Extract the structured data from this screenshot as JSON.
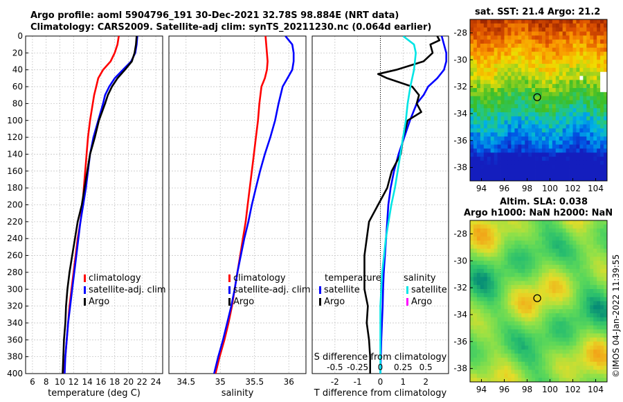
{
  "header": {
    "line1": "Argo profile: aoml 5904796_191 30-Dec-2021 32.78S 98.884E (NRT data)",
    "line2": "Climatology: CARS2009. Satellite-adj clim: synTS_20211230.nc (0.064d earlier)"
  },
  "right_titles": {
    "sst": "sat. SST: 21.4 Argo: 21.2",
    "sla_line1": "Altim. SLA: 0.038",
    "sla_line2": "Argo h1000: NaN h2000: NaN"
  },
  "watermark": "©IMOS 04-Jan-2022 11:39:55",
  "colors": {
    "climatology": "#ff0000",
    "satellite": "#0000ff",
    "argo": "#000000",
    "sat_salinity": "#00e5e5",
    "argo_salinity": "#ff00ff"
  },
  "chart_data": [
    {
      "type": "line",
      "name": "temperature-profile",
      "xlabel": "temperature (deg C)",
      "ylabel": "",
      "xlim": [
        5,
        25
      ],
      "ylim": [
        400,
        0
      ],
      "xticks": [
        6,
        8,
        10,
        12,
        14,
        16,
        18,
        20,
        22,
        24
      ],
      "yticks": [
        0,
        20,
        40,
        60,
        80,
        100,
        120,
        140,
        160,
        180,
        200,
        220,
        240,
        260,
        280,
        300,
        320,
        340,
        360,
        380,
        400
      ],
      "grid": true,
      "legend": [
        "climatology",
        "satellite-adj. clim",
        "Argo"
      ],
      "series": [
        {
          "name": "climatology",
          "color": "#ff0000",
          "depth": [
            0,
            10,
            20,
            30,
            40,
            50,
            60,
            70,
            80,
            100,
            120,
            140,
            160,
            180,
            200,
            220,
            240,
            260,
            280,
            300,
            320,
            340,
            360,
            380,
            400
          ],
          "values": [
            18.6,
            18.4,
            18.0,
            17.4,
            16.3,
            15.6,
            15.3,
            15.0,
            14.8,
            14.4,
            14.1,
            13.9,
            13.7,
            13.5,
            13.3,
            13.0,
            12.6,
            12.3,
            12.0,
            11.7,
            11.4,
            11.2,
            11.0,
            10.8,
            10.6
          ]
        },
        {
          "name": "satellite-adj. clim",
          "color": "#0000ff",
          "depth": [
            0,
            10,
            20,
            30,
            40,
            50,
            60,
            70,
            80,
            100,
            120,
            140,
            160,
            180,
            200,
            220,
            240,
            260,
            280,
            300,
            320,
            340,
            360,
            380,
            400
          ],
          "values": [
            21.3,
            21.2,
            21.0,
            20.4,
            19.2,
            18.0,
            17.2,
            16.6,
            16.3,
            15.6,
            14.9,
            14.4,
            14.1,
            13.8,
            13.4,
            13.0,
            12.7,
            12.4,
            12.1,
            11.8,
            11.5,
            11.2,
            11.0,
            10.8,
            10.7
          ]
        },
        {
          "name": "Argo",
          "color": "#000000",
          "depth": [
            0,
            10,
            20,
            30,
            40,
            50,
            60,
            70,
            80,
            100,
            120,
            140,
            160,
            180,
            200,
            220,
            240,
            260,
            280,
            300,
            320,
            340,
            360,
            380,
            400
          ],
          "values": [
            21.2,
            21.1,
            20.9,
            20.5,
            19.5,
            18.4,
            17.6,
            17.0,
            16.6,
            15.7,
            15.1,
            14.4,
            14.0,
            13.6,
            13.2,
            12.6,
            12.2,
            11.8,
            11.4,
            11.1,
            10.9,
            10.8,
            10.6,
            10.5,
            10.4
          ]
        }
      ]
    },
    {
      "type": "line",
      "name": "salinity-profile",
      "xlabel": "salinity",
      "xlim": [
        34.25,
        36.25
      ],
      "ylim": [
        400,
        0
      ],
      "xticks": [
        34.5,
        35,
        35.5,
        36
      ],
      "xtick_labels": [
        "34.5",
        "35",
        "35.5",
        "36"
      ],
      "grid": true,
      "legend": [
        "climatology",
        "satellite-adj. clim",
        "Argo"
      ],
      "series": [
        {
          "name": "climatology",
          "color": "#ff0000",
          "depth": [
            0,
            10,
            20,
            30,
            40,
            50,
            60,
            80,
            100,
            120,
            140,
            160,
            180,
            200,
            220,
            240,
            260,
            280,
            300,
            320,
            340,
            360,
            380,
            400
          ],
          "values": [
            35.66,
            35.67,
            35.68,
            35.69,
            35.68,
            35.65,
            35.6,
            35.57,
            35.55,
            35.52,
            35.49,
            35.46,
            35.43,
            35.4,
            35.37,
            35.33,
            35.29,
            35.25,
            35.21,
            35.17,
            35.12,
            35.06,
            34.99,
            34.93
          ]
        },
        {
          "name": "satellite-adj. clim",
          "color": "#0000ff",
          "depth": [
            0,
            10,
            20,
            30,
            40,
            50,
            60,
            80,
            100,
            120,
            140,
            160,
            180,
            200,
            220,
            240,
            260,
            280,
            300,
            320,
            340,
            360,
            380,
            400
          ],
          "values": [
            35.95,
            36.05,
            36.07,
            36.07,
            36.05,
            35.98,
            35.91,
            35.85,
            35.8,
            35.73,
            35.65,
            35.58,
            35.52,
            35.46,
            35.41,
            35.35,
            35.3,
            35.25,
            35.21,
            35.16,
            35.1,
            35.04,
            34.97,
            34.91
          ]
        },
        {
          "name": "Argo",
          "color": "#000000",
          "depth": [],
          "values": []
        }
      ]
    },
    {
      "type": "line",
      "name": "difference-profile",
      "xlabel": "T difference from climatology",
      "top_axis_label": "S difference from climatology",
      "xlim": [
        -3,
        3
      ],
      "ylim": [
        400,
        0
      ],
      "xticks": [
        -2,
        -1,
        0,
        1,
        2
      ],
      "xtick_labels": [
        "-2",
        "-1",
        "0",
        "1",
        "2"
      ],
      "top_ticks": [
        -0.5,
        -0.25,
        0,
        0.25,
        0.5
      ],
      "top_tick_labels": [
        "-0.5",
        "-0.25",
        "0",
        "0.25",
        "0.5"
      ],
      "top_xlim": [
        -0.75,
        0.75
      ],
      "grid": true,
      "zero_line": true,
      "legend_left_title": "temperature",
      "legend_right_title": "salinity",
      "legend": [
        "satellite",
        "Argo",
        "satellite",
        "Argo"
      ],
      "series": [
        {
          "name": "T satellite",
          "color": "#0000ff",
          "axis": "T",
          "depth": [
            0,
            10,
            20,
            30,
            40,
            50,
            60,
            70,
            80,
            100,
            120,
            140,
            160,
            180,
            200,
            220,
            240,
            260,
            280,
            300,
            320,
            340,
            360,
            380,
            400
          ],
          "values": [
            2.7,
            2.8,
            2.9,
            2.9,
            2.8,
            2.5,
            2.1,
            1.9,
            1.6,
            1.3,
            1.05,
            0.8,
            0.6,
            0.45,
            0.35,
            0.3,
            0.25,
            0.2,
            0.15,
            0.12,
            0.1,
            0.07,
            0.04,
            0.02,
            0.0
          ]
        },
        {
          "name": "T Argo",
          "color": "#000000",
          "axis": "T",
          "depth": [
            0,
            5,
            10,
            20,
            30,
            40,
            45,
            50,
            60,
            70,
            80,
            90,
            100,
            120,
            140,
            160,
            180,
            200,
            220,
            240,
            260,
            280,
            300,
            320,
            340,
            360,
            380,
            400
          ],
          "values": [
            2.5,
            2.6,
            2.2,
            2.3,
            1.9,
            0.7,
            -0.1,
            0.3,
            1.4,
            1.7,
            1.6,
            1.8,
            1.2,
            1.0,
            0.9,
            0.5,
            0.3,
            -0.1,
            -0.5,
            -0.6,
            -0.7,
            -0.7,
            -0.7,
            -0.55,
            -0.6,
            -0.5,
            -0.45,
            -0.45
          ]
        },
        {
          "name": "S satellite",
          "color": "#00e5e5",
          "axis": "S",
          "depth": [
            0,
            10,
            20,
            30,
            40,
            60,
            80,
            100,
            120,
            140,
            160,
            180,
            200,
            220,
            240,
            260,
            280,
            300,
            320,
            340,
            360,
            380,
            400
          ],
          "values": [
            0.25,
            0.37,
            0.39,
            0.38,
            0.37,
            0.33,
            0.3,
            0.28,
            0.25,
            0.22,
            0.19,
            0.16,
            0.12,
            0.09,
            0.06,
            0.04,
            0.02,
            0.01,
            0.0,
            0.0,
            0.0,
            0.0,
            0.0
          ]
        },
        {
          "name": "S Argo",
          "color": "#ff00ff",
          "axis": "S",
          "depth": [],
          "values": []
        }
      ]
    },
    {
      "type": "heatmap",
      "name": "sat-sst-map",
      "title": "sat. SST: 21.4 Argo: 21.2",
      "xlim": [
        93,
        105
      ],
      "ylim": [
        -39,
        -27
      ],
      "xticks": [
        94,
        96,
        98,
        100,
        102,
        104
      ],
      "yticks": [
        -28,
        -30,
        -32,
        -34,
        -36,
        -38
      ],
      "marker": {
        "lon": 98.884,
        "lat": -32.78
      }
    },
    {
      "type": "heatmap",
      "name": "altim-sla-map",
      "title": "Altim. SLA: 0.038",
      "xlim": [
        93,
        105
      ],
      "ylim": [
        -39,
        -27
      ],
      "xticks": [
        94,
        96,
        98,
        100,
        102,
        104
      ],
      "yticks": [
        -28,
        -30,
        -32,
        -34,
        -36,
        -38
      ],
      "marker": {
        "lon": 98.884,
        "lat": -32.78
      }
    }
  ]
}
